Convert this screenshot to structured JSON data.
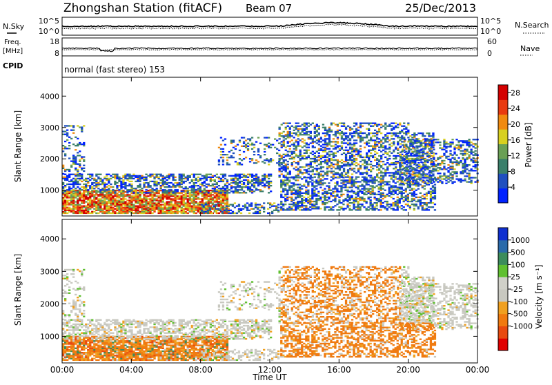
{
  "header": {
    "station": "Zhongshan Station (fitACF)",
    "beam": "Beam 07",
    "date": "25/Dec/2013"
  },
  "top_panels": {
    "nsky_label": "N.Sky",
    "nsearch_label": "N.Search",
    "noise_ticks": [
      "10^5",
      "10^0"
    ],
    "freq_label_1": "Freq.",
    "freq_label_2": "[MHz]",
    "freq_ticks": [
      "18",
      "8"
    ],
    "nave_label": "Nave",
    "nave_ticks": [
      "60",
      "0"
    ],
    "cpid_label": "CPID",
    "cpid_text": "normal (fast stereo) 153"
  },
  "colors": {
    "power_scale": [
      "#0022ff",
      "#1f4fbf",
      "#3a7f6a",
      "#6aa055",
      "#d8d020",
      "#f08a10",
      "#e83a10",
      "#d40000"
    ],
    "velocity_scale": [
      "#e00000",
      "#e84a10",
      "#f07a10",
      "#f0a020",
      "#c8c8c0",
      "#d0d0c8",
      "#60c030",
      "#3c8c5c",
      "#2a6aaa",
      "#1030d0"
    ]
  },
  "chart_data": [
    {
      "type": "heatmap",
      "panel": "power",
      "ylabel": "Slant Range [km]",
      "yticks": [
        "1000",
        "2000",
        "3000",
        "4000"
      ],
      "ylim": [
        180,
        4600
      ],
      "xlim": [
        0,
        24
      ],
      "colorbar_label": "Power [dB]",
      "colorbar_ticks": [
        "4",
        "8",
        "12",
        "16",
        "20",
        "24",
        "28"
      ],
      "colorbar_range": [
        0,
        30
      ]
    },
    {
      "type": "heatmap",
      "panel": "velocity",
      "ylabel": "Slant Range [km]",
      "yticks": [
        "1000",
        "2000",
        "3000",
        "4000"
      ],
      "ylim": [
        180,
        4600
      ],
      "xlim": [
        0,
        24
      ],
      "colorbar_label": "Velocity [m s⁻¹]",
      "colorbar_ticks": [
        "1000",
        "500",
        "100",
        "25",
        "-25",
        "-100",
        "-500",
        "-1000"
      ],
      "xticks": [
        "00:00",
        "04:00",
        "08:00",
        "12:00",
        "16:00",
        "20:00",
        "00:00"
      ],
      "xlabel": "Time UT"
    }
  ]
}
